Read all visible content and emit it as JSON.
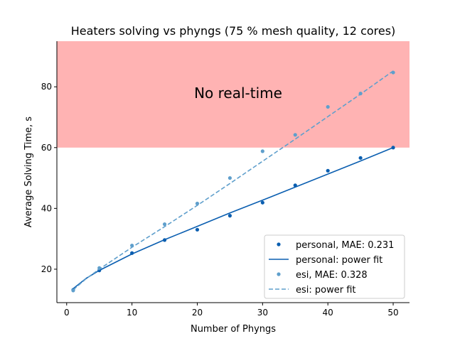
{
  "chart_data": {
    "type": "scatter",
    "title": "Heaters solving vs phyngs (75 % mesh quality, 12 cores)",
    "xlabel": "Number of Phyngs",
    "ylabel": "Average Solving Time, s",
    "xlim": [
      -1.5,
      52.5
    ],
    "ylim": [
      9,
      95
    ],
    "xticks": [
      0,
      10,
      20,
      30,
      40,
      50
    ],
    "yticks": [
      20,
      40,
      60,
      80
    ],
    "region": {
      "label": "No real-time",
      "y_from": 60,
      "y_to": 95,
      "color": "#ffb3b3"
    },
    "legend_position": "lower-right",
    "series": [
      {
        "name": "personal, MAE: 0.231",
        "kind": "points",
        "color": "#0a5eb0",
        "x": [
          1,
          5,
          10,
          15,
          20,
          25,
          30,
          35,
          40,
          45,
          50
        ],
        "y": [
          13.2,
          19.6,
          25.3,
          29.6,
          33.0,
          37.6,
          41.9,
          47.6,
          52.4,
          56.6,
          60.0
        ]
      },
      {
        "name": "personal: power fit",
        "kind": "line",
        "style": "solid",
        "color": "#0a5eb0",
        "x": [
          1,
          3,
          5,
          10,
          15,
          20,
          25,
          30,
          35,
          40,
          45,
          50
        ],
        "y": [
          13.6,
          17.0,
          19.6,
          25.0,
          29.7,
          34.1,
          38.5,
          42.7,
          47.0,
          51.3,
          55.6,
          60.0
        ]
      },
      {
        "name": "esi, MAE: 0.328",
        "kind": "points",
        "color": "#5f9fcc",
        "x": [
          1,
          5,
          10,
          15,
          20,
          25,
          30,
          35,
          40,
          45,
          50
        ],
        "y": [
          13.0,
          20.4,
          27.8,
          34.8,
          41.6,
          50.0,
          58.8,
          64.2,
          73.4,
          77.8,
          84.7
        ]
      },
      {
        "name": "esi: power fit",
        "kind": "line",
        "style": "dashed",
        "color": "#5f9fcc",
        "x": [
          1,
          3,
          5,
          10,
          15,
          20,
          25,
          30,
          35,
          40,
          45,
          50
        ],
        "y": [
          13.2,
          16.9,
          20.0,
          27.2,
          34.0,
          41.0,
          48.2,
          55.5,
          62.8,
          70.2,
          77.6,
          85.2
        ]
      }
    ]
  }
}
